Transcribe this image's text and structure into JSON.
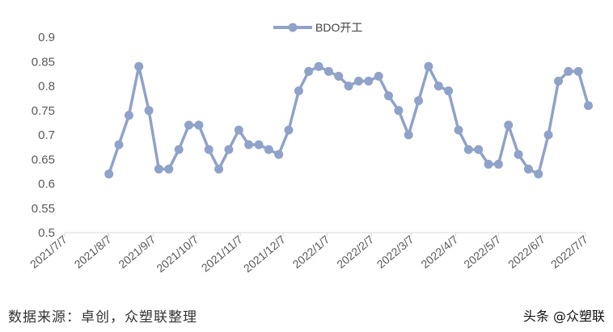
{
  "chart_data": {
    "type": "line",
    "legend": {
      "placement": "top-center"
    },
    "grid": false,
    "ylim": [
      0.5,
      0.9
    ],
    "yticks": [
      "0.5",
      "0.55",
      "0.6",
      "0.65",
      "0.7",
      "0.75",
      "0.8",
      "0.85",
      "0.9"
    ],
    "xticks": [
      "2021/7/7",
      "2021/8/7",
      "2021/9/7",
      "2021/10/7",
      "2021/11/7",
      "2021/12/7",
      "2022/1/7",
      "2022/2/7",
      "2022/3/7",
      "2022/4/7",
      "2022/5/7",
      "2022/6/7",
      "2022/7/7"
    ],
    "series": [
      {
        "name": "BDO开工",
        "color": "#8fa2c9",
        "x": [
          "2021-08-07",
          "2021-08-14",
          "2021-08-21",
          "2021-08-28",
          "2021-09-04",
          "2021-09-11",
          "2021-09-18",
          "2021-09-25",
          "2021-10-02",
          "2021-10-09",
          "2021-10-16",
          "2021-10-23",
          "2021-10-30",
          "2021-11-06",
          "2021-11-13",
          "2021-11-20",
          "2021-11-27",
          "2021-12-04",
          "2021-12-11",
          "2021-12-18",
          "2021-12-25",
          "2022-01-01",
          "2022-01-08",
          "2022-01-15",
          "2022-01-22",
          "2022-01-29",
          "2022-02-05",
          "2022-02-12",
          "2022-02-19",
          "2022-02-26",
          "2022-03-05",
          "2022-03-12",
          "2022-03-19",
          "2022-03-26",
          "2022-04-02",
          "2022-04-09",
          "2022-04-16",
          "2022-04-23",
          "2022-04-30",
          "2022-05-07",
          "2022-05-14",
          "2022-05-21",
          "2022-05-28",
          "2022-06-04",
          "2022-06-11",
          "2022-06-18",
          "2022-06-25",
          "2022-07-02",
          "2022-07-09"
        ],
        "values": [
          0.62,
          0.68,
          0.74,
          0.84,
          0.75,
          0.63,
          0.63,
          0.67,
          0.72,
          0.72,
          0.67,
          0.63,
          0.67,
          0.71,
          0.68,
          0.68,
          0.67,
          0.66,
          0.71,
          0.79,
          0.83,
          0.84,
          0.83,
          0.82,
          0.8,
          0.81,
          0.81,
          0.82,
          0.78,
          0.75,
          0.7,
          0.77,
          0.84,
          0.8,
          0.79,
          0.71,
          0.67,
          0.67,
          0.64,
          0.64,
          0.72,
          0.66,
          0.63,
          0.62,
          0.7,
          0.81,
          0.83,
          0.83,
          0.76
        ]
      }
    ]
  },
  "footer": {
    "source": "数据来源：卓创，众塑联整理",
    "brand": "头条 @众塑联"
  }
}
